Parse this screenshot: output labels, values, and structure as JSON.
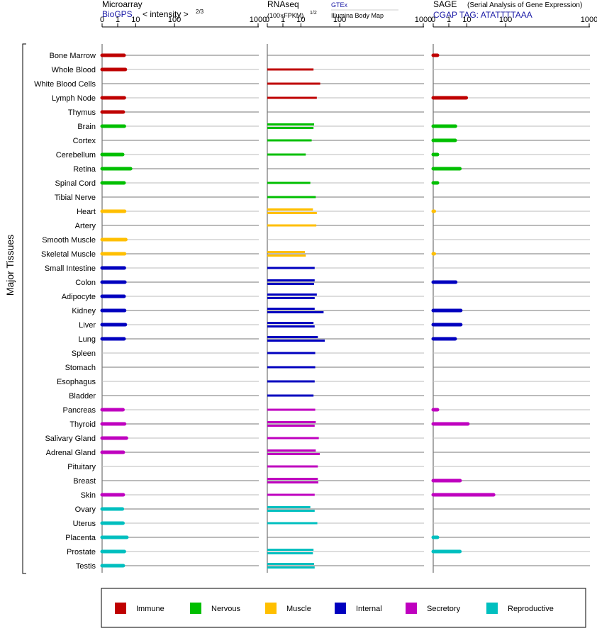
{
  "y_axis_label": "Major Tissues",
  "panels": {
    "microarray": {
      "title": "Microarray",
      "source": "BioGPS",
      "metric": "< intensity >",
      "metric_exp": "2/3"
    },
    "rnaseq": {
      "title": "RNAseq",
      "metric": "(100×FPKM)",
      "metric_exp": "1/2",
      "source_a": "GTEx",
      "source_b": "Illumina Body Map"
    },
    "sage": {
      "title": "SAGE",
      "subtitle": "(Serial Analysis of Gene Expression)",
      "tag": "CGAP TAG: ATATTTTAAA"
    }
  },
  "colors": {
    "Immune": "#bf0000",
    "Nervous": "#00bf00",
    "Muscle": "#ffbf00",
    "Internal": "#0000bf",
    "Secretory": "#bf00bf",
    "Reproductive": "#00bfbf"
  },
  "chart_data": {
    "type": "bar",
    "x_scale": "power",
    "x_ticks": [
      "0",
      "1",
      "10",
      "100",
      "1000"
    ],
    "x_tick_values": [
      0,
      1,
      10,
      100,
      1000
    ],
    "xlim": [
      0,
      1000
    ],
    "legend_position": "bottom",
    "legend": [
      "Immune",
      "Nervous",
      "Muscle",
      "Internal",
      "Secretory",
      "Reproductive"
    ],
    "categories": [
      {
        "name": "Bone Marrow",
        "group": "Immune"
      },
      {
        "name": "Whole Blood",
        "group": "Immune"
      },
      {
        "name": "White Blood Cells",
        "group": "Immune"
      },
      {
        "name": "Lymph Node",
        "group": "Immune"
      },
      {
        "name": "Thymus",
        "group": "Immune"
      },
      {
        "name": "Brain",
        "group": "Nervous"
      },
      {
        "name": "Cortex",
        "group": "Nervous"
      },
      {
        "name": "Cerebellum",
        "group": "Nervous"
      },
      {
        "name": "Retina",
        "group": "Nervous"
      },
      {
        "name": "Spinal Cord",
        "group": "Nervous"
      },
      {
        "name": "Tibial Nerve",
        "group": "Nervous"
      },
      {
        "name": "Heart",
        "group": "Muscle"
      },
      {
        "name": "Artery",
        "group": "Muscle"
      },
      {
        "name": "Smooth Muscle",
        "group": "Muscle"
      },
      {
        "name": "Skeletal Muscle",
        "group": "Muscle"
      },
      {
        "name": "Small Intestine",
        "group": "Internal"
      },
      {
        "name": "Colon",
        "group": "Internal"
      },
      {
        "name": "Adipocyte",
        "group": "Internal"
      },
      {
        "name": "Kidney",
        "group": "Internal"
      },
      {
        "name": "Liver",
        "group": "Internal"
      },
      {
        "name": "Lung",
        "group": "Internal"
      },
      {
        "name": "Spleen",
        "group": "Internal"
      },
      {
        "name": "Stomach",
        "group": "Internal"
      },
      {
        "name": "Esophagus",
        "group": "Internal"
      },
      {
        "name": "Bladder",
        "group": "Internal"
      },
      {
        "name": "Pancreas",
        "group": "Secretory"
      },
      {
        "name": "Thyroid",
        "group": "Secretory"
      },
      {
        "name": "Salivary Gland",
        "group": "Secretory"
      },
      {
        "name": "Adrenal Gland",
        "group": "Secretory"
      },
      {
        "name": "Pituitary",
        "group": "Secretory"
      },
      {
        "name": "Breast",
        "group": "Secretory"
      },
      {
        "name": "Skin",
        "group": "Secretory"
      },
      {
        "name": "Ovary",
        "group": "Reproductive"
      },
      {
        "name": "Uterus",
        "group": "Reproductive"
      },
      {
        "name": "Placenta",
        "group": "Reproductive"
      },
      {
        "name": "Prostate",
        "group": "Reproductive"
      },
      {
        "name": "Testis",
        "group": "Reproductive"
      }
    ],
    "microarray": [
      2.8,
      3.3,
      null,
      2.9,
      2.5,
      2.9,
      null,
      2.3,
      6.1,
      2.8,
      null,
      3.0,
      null,
      3.5,
      3.0,
      2.9,
      3.1,
      2.8,
      3.0,
      3.3,
      2.8,
      null,
      null,
      null,
      null,
      2.4,
      3.0,
      3.8,
      2.5,
      null,
      null,
      2.5,
      2.2,
      2.4,
      4.0,
      2.9,
      2.5
    ],
    "rnaseq": [
      [],
      [
        26
      ],
      [
        39
      ],
      [
        32
      ],
      [],
      [
        27,
        26
      ],
      [
        23
      ],
      [
        15
      ],
      [],
      [
        21
      ],
      [
        30
      ],
      [
        25,
        32
      ],
      [
        31
      ],
      [],
      [
        14,
        15
      ],
      [
        28
      ],
      [
        28,
        27
      ],
      [
        32,
        28
      ],
      [
        28,
        47
      ],
      [
        26,
        28
      ],
      [
        34,
        50
      ],
      [
        29
      ],
      [
        29
      ],
      [
        28
      ],
      [
        26
      ],
      [
        29
      ],
      [
        30,
        28
      ],
      [
        36
      ],
      [
        30,
        38
      ],
      [
        34
      ],
      [
        34,
        35
      ],
      [
        28
      ],
      [
        21,
        28
      ],
      [
        33
      ],
      [],
      [
        26,
        25
      ],
      [
        27,
        28
      ]
    ],
    "sage": [
      0.02,
      null,
      null,
      9.5,
      null,
      2.9,
      2.8,
      0.02,
      5.0,
      0.02,
      null,
      0.0,
      null,
      null,
      0.0,
      null,
      3.0,
      null,
      5.5,
      5.5,
      2.8,
      null,
      null,
      null,
      null,
      0.02,
      11,
      null,
      null,
      null,
      5.1,
      58,
      null,
      null,
      0.02,
      5.0,
      null
    ]
  }
}
